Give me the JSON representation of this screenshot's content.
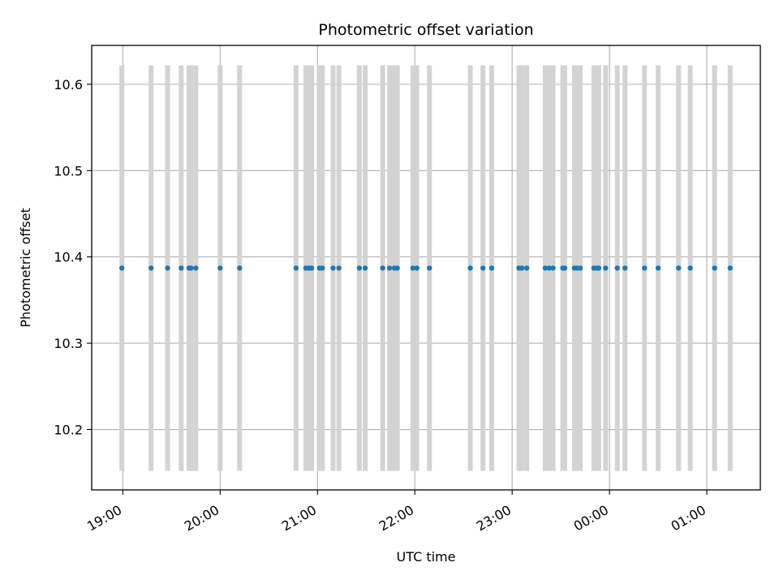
{
  "chart_data": {
    "type": "scatter",
    "title": "Photometric offset variation",
    "xlabel": "UTC time",
    "ylabel": "Photometric offset",
    "grid": true,
    "x_tick_labels": [
      "19:00",
      "20:00",
      "21:00",
      "22:00",
      "23:00",
      "00:00",
      "01:00"
    ],
    "x_tick_hours": [
      19,
      20,
      21,
      22,
      23,
      24,
      25
    ],
    "xlim_hours": [
      18.68,
      25.55
    ],
    "y_ticks": [
      "10.2",
      "10.3",
      "10.4",
      "10.5",
      "10.6"
    ],
    "ylim": [
      10.13,
      10.645
    ],
    "error_low": 10.152,
    "error_high": 10.622,
    "colors": {
      "points": "#1f77b4",
      "errorbars": "#d3d3d3",
      "grid": "#b0b0b0"
    },
    "series": [
      {
        "y": 10.387,
        "x_hours": [
          18.99,
          19.29,
          19.46,
          19.6,
          19.68,
          19.7,
          19.75,
          20.0,
          20.2,
          20.78,
          20.88,
          20.91,
          20.94,
          21.02,
          21.05,
          21.16,
          21.22,
          21.43,
          21.49,
          21.67,
          21.74,
          21.79,
          21.82,
          21.98,
          22.02,
          22.15,
          22.57,
          22.7,
          22.79,
          23.07,
          23.1,
          23.15,
          23.34,
          23.38,
          23.42,
          23.52,
          23.54,
          23.64,
          23.67,
          23.7,
          23.84,
          23.87,
          23.89,
          23.96,
          24.08,
          24.16,
          24.36,
          24.5,
          24.71,
          24.83,
          25.08,
          25.24
        ]
      }
    ]
  }
}
